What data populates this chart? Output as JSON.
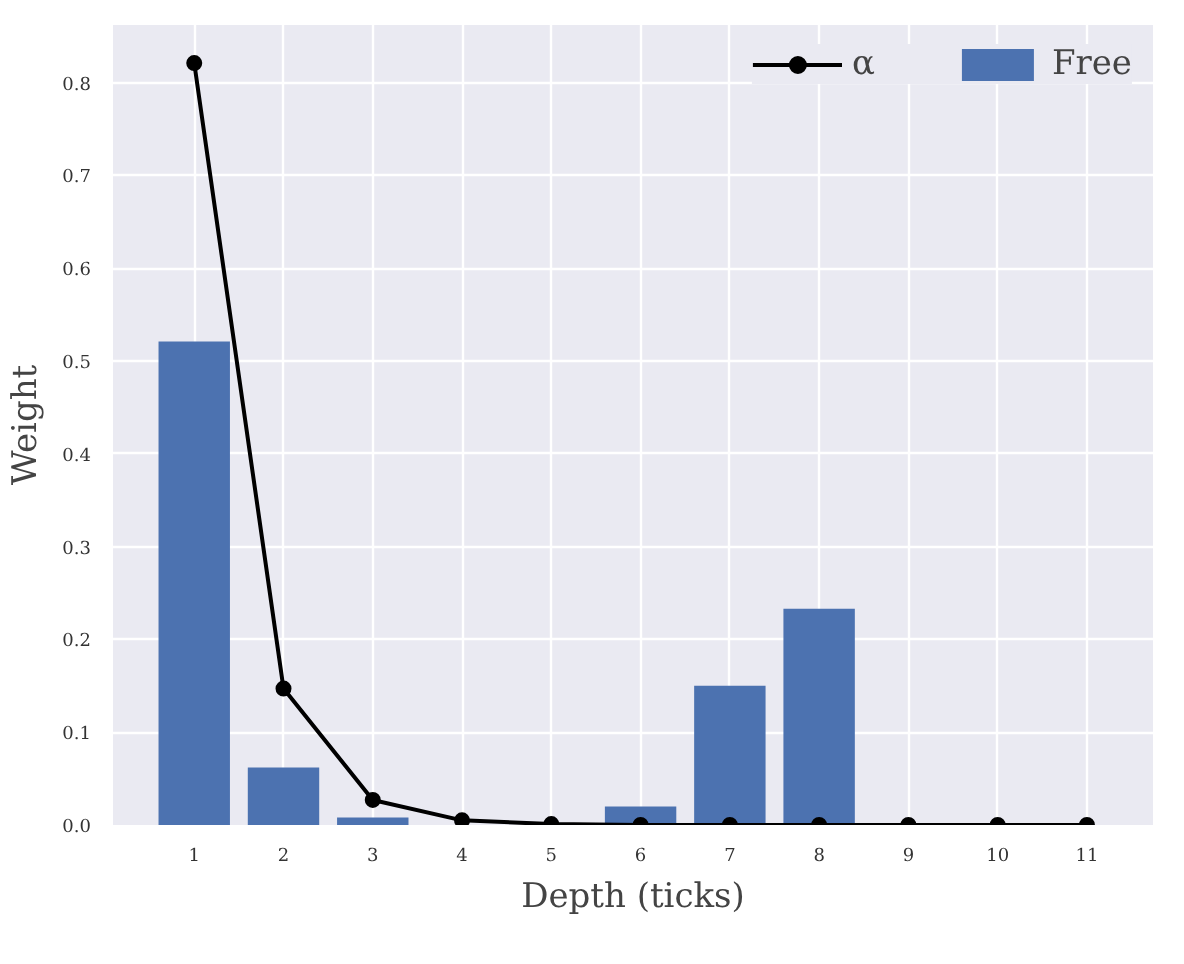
{
  "chart_data": {
    "type": "bar",
    "xlabel": "Depth (ticks)",
    "ylabel": "Weight",
    "x": [
      1,
      2,
      3,
      4,
      5,
      6,
      7,
      8,
      9,
      10,
      11
    ],
    "series": [
      {
        "name": "α",
        "type": "line",
        "color": "#000000",
        "marker": "circle",
        "line_style": "solid",
        "values": [
          0.821,
          0.147,
          0.027,
          0.005,
          0.001,
          0,
          0,
          0,
          0,
          0,
          0
        ]
      },
      {
        "name": "Free",
        "color": "#4c72b0",
        "values": [
          0.521,
          0.062,
          0.008,
          0,
          0,
          0.02,
          0.15,
          0.233,
          0,
          0,
          0
        ]
      }
    ],
    "xlim": [
      0.09,
      11.74
    ],
    "ylim": [
      0,
      0.862
    ],
    "xticks": [
      1,
      2,
      3,
      4,
      5,
      6,
      7,
      8,
      9,
      10,
      11
    ],
    "yticks": [
      {
        "value": 0,
        "label": "0.0"
      },
      0.1,
      0.2,
      0.3,
      0.4,
      0.5,
      0.6,
      0.7,
      0.8
    ],
    "grid": true,
    "legend": "top right"
  }
}
